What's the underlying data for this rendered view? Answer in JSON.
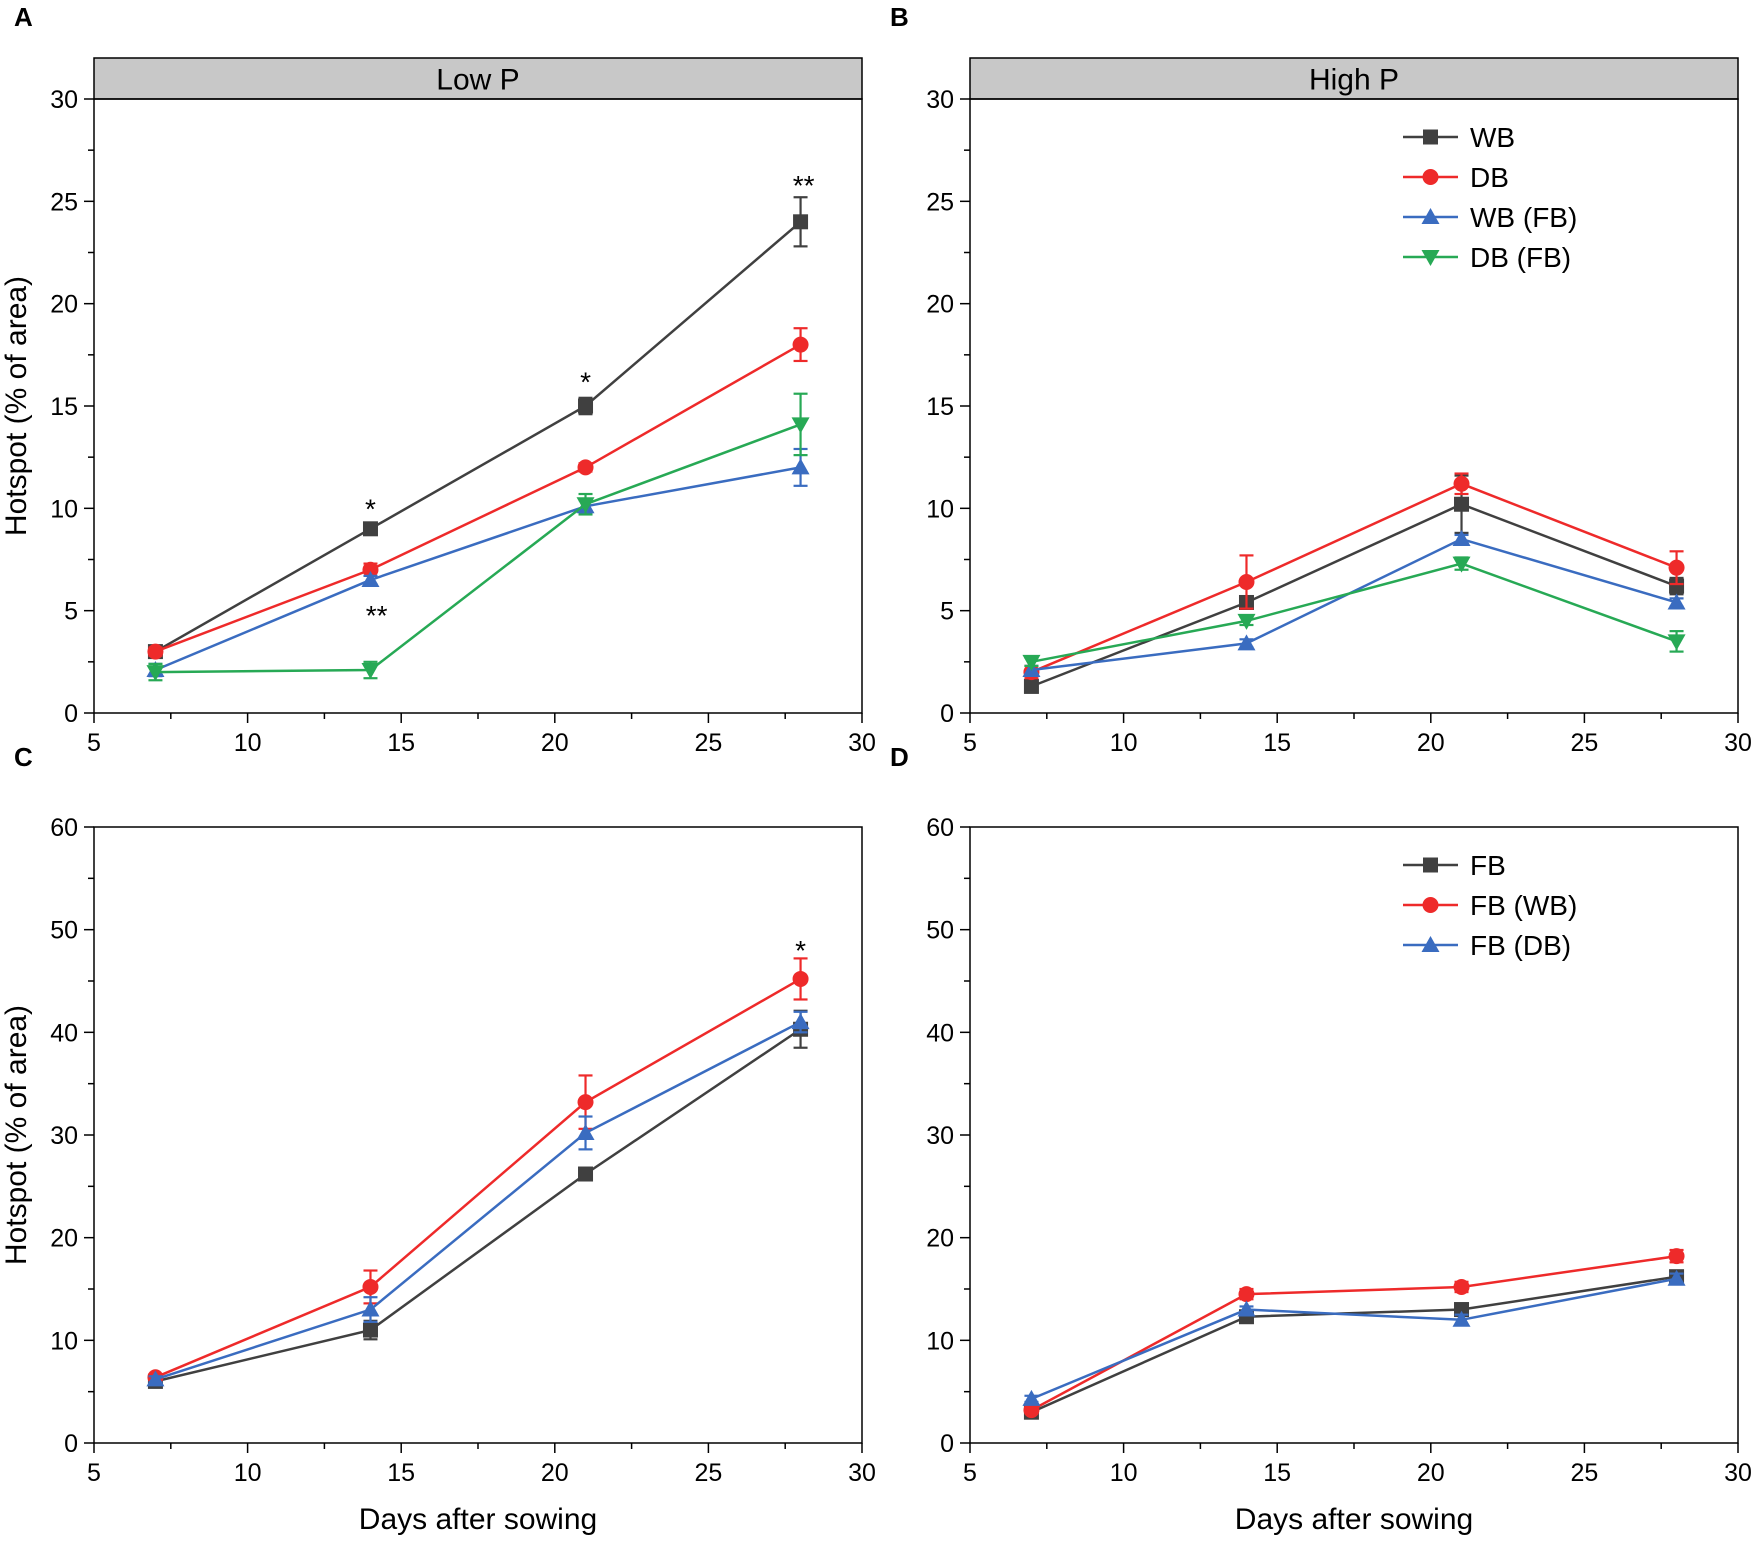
{
  "figure": {
    "colors": {
      "WB": "#404040",
      "DB": "#ee2a2a",
      "WB (FB)": "#3a6cc0",
      "DB (FB)": "#27a955",
      "FB": "#404040",
      "FB (WB)": "#ee2a2a",
      "FB (DB)": "#3a6cc0",
      "strip_fill": "#c8c8c8"
    }
  },
  "chart_data": [
    {
      "panel": "A",
      "type": "line",
      "strip_title": "Low P",
      "xlabel": "",
      "ylabel": "Hotspot (% of area)",
      "xlim": [
        5,
        30
      ],
      "ylim": [
        0,
        30
      ],
      "xticks": [
        5,
        10,
        15,
        20,
        25,
        30
      ],
      "yticks": [
        0,
        5,
        10,
        15,
        20,
        25,
        30
      ],
      "x": [
        7,
        14,
        21,
        28
      ],
      "legend": false,
      "series": [
        {
          "name": "WB",
          "marker": "square",
          "values": [
            3.0,
            9.0,
            15.0,
            24.0
          ],
          "errors": [
            0.2,
            0.2,
            0.4,
            1.2
          ]
        },
        {
          "name": "DB",
          "marker": "circle",
          "values": [
            3.0,
            7.0,
            12.0,
            18.0
          ],
          "errors": [
            0.2,
            0.3,
            0.2,
            0.8
          ]
        },
        {
          "name": "WB (FB)",
          "marker": "triangle-up",
          "values": [
            2.1,
            6.5,
            10.1,
            12.0
          ],
          "errors": [
            0.3,
            0.2,
            0.3,
            0.9
          ]
        },
        {
          "name": "DB (FB)",
          "marker": "triangle-down",
          "values": [
            2.0,
            2.1,
            10.2,
            14.1
          ],
          "errors": [
            0.4,
            0.4,
            0.5,
            1.5
          ]
        }
      ],
      "annotations": [
        {
          "text": "*",
          "x": 14,
          "y": 10.0
        },
        {
          "text": "**",
          "x": 14.2,
          "y": 4.8
        },
        {
          "text": "*",
          "x": 21,
          "y": 16.2
        },
        {
          "text": "**",
          "x": 28.1,
          "y": 25.8
        }
      ]
    },
    {
      "panel": "B",
      "type": "line",
      "strip_title": "High P",
      "xlabel": "",
      "ylabel": "",
      "xlim": [
        5,
        30
      ],
      "ylim": [
        0,
        30
      ],
      "xticks": [
        5,
        10,
        15,
        20,
        25,
        30
      ],
      "yticks": [
        0,
        5,
        10,
        15,
        20,
        25,
        30
      ],
      "x": [
        7,
        14,
        21,
        28
      ],
      "legend": true,
      "legend_position": "top-right",
      "series": [
        {
          "name": "WB",
          "marker": "square",
          "values": [
            1.3,
            5.4,
            10.2,
            6.2
          ],
          "errors": [
            0.3,
            0.3,
            1.4,
            0.4
          ]
        },
        {
          "name": "DB",
          "marker": "circle",
          "values": [
            2.0,
            6.4,
            11.2,
            7.1
          ],
          "errors": [
            0.3,
            1.3,
            0.5,
            0.8
          ]
        },
        {
          "name": "WB (FB)",
          "marker": "triangle-up",
          "values": [
            2.1,
            3.4,
            8.5,
            5.4
          ],
          "errors": [
            0.2,
            0.2,
            0.2,
            0.2
          ]
        },
        {
          "name": "DB (FB)",
          "marker": "triangle-down",
          "values": [
            2.5,
            4.5,
            7.3,
            3.5
          ],
          "errors": [
            0.2,
            0.2,
            0.3,
            0.5
          ]
        }
      ],
      "annotations": []
    },
    {
      "panel": "C",
      "type": "line",
      "strip_title": "",
      "xlabel": "Days after sowing",
      "ylabel": "Hotspot (% of area)",
      "xlim": [
        5,
        30
      ],
      "ylim": [
        0,
        60
      ],
      "xticks": [
        5,
        10,
        15,
        20,
        25,
        30
      ],
      "yticks": [
        0,
        10,
        20,
        30,
        40,
        50,
        60
      ],
      "x": [
        7,
        14,
        21,
        28
      ],
      "legend": false,
      "series": [
        {
          "name": "FB",
          "marker": "square",
          "values": [
            6.0,
            11.0,
            26.2,
            40.3
          ],
          "errors": [
            0.4,
            0.9,
            0.5,
            1.8
          ]
        },
        {
          "name": "FB (WB)",
          "marker": "circle",
          "values": [
            6.4,
            15.2,
            33.2,
            45.2
          ],
          "errors": [
            0.3,
            1.6,
            2.6,
            2.0
          ]
        },
        {
          "name": "FB (DB)",
          "marker": "triangle-up",
          "values": [
            6.2,
            13.0,
            30.2,
            41.0
          ],
          "errors": [
            0.3,
            1.2,
            1.6,
            1.0
          ]
        }
      ],
      "annotations": [
        {
          "text": "*",
          "x": 28,
          "y": 48.0
        }
      ]
    },
    {
      "panel": "D",
      "type": "line",
      "strip_title": "",
      "xlabel": "Days after sowing",
      "ylabel": "",
      "xlim": [
        5,
        30
      ],
      "ylim": [
        0,
        60
      ],
      "xticks": [
        5,
        10,
        15,
        20,
        25,
        30
      ],
      "yticks": [
        0,
        10,
        20,
        30,
        40,
        50,
        60
      ],
      "x": [
        7,
        14,
        21,
        28
      ],
      "legend": true,
      "legend_position": "top-right",
      "series": [
        {
          "name": "FB",
          "marker": "square",
          "values": [
            3.0,
            12.3,
            13.0,
            16.2
          ],
          "errors": [
            0.3,
            0.4,
            0.3,
            0.3
          ]
        },
        {
          "name": "FB (WB)",
          "marker": "circle",
          "values": [
            3.2,
            14.5,
            15.2,
            18.2
          ],
          "errors": [
            0.3,
            0.5,
            0.5,
            0.6
          ]
        },
        {
          "name": "FB (DB)",
          "marker": "triangle-up",
          "values": [
            4.3,
            13.0,
            12.0,
            16.0
          ],
          "errors": [
            0.3,
            0.3,
            0.5,
            0.5
          ]
        }
      ],
      "annotations": []
    }
  ]
}
